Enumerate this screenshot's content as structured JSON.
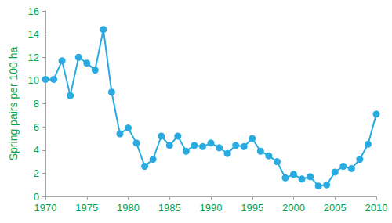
{
  "chart_data": {
    "type": "line",
    "ylabel": "Spring pairs per 100 ha",
    "x": [
      1970,
      1971,
      1972,
      1973,
      1974,
      1975,
      1976,
      1977,
      1978,
      1979,
      1980,
      1981,
      1982,
      1983,
      1984,
      1985,
      1986,
      1987,
      1988,
      1989,
      1990,
      1991,
      1992,
      1993,
      1994,
      1995,
      1996,
      1997,
      1998,
      1999,
      2000,
      2001,
      2002,
      2003,
      2004,
      2005,
      2006,
      2007,
      2008,
      2009,
      2010
    ],
    "values": [
      10.1,
      10.1,
      11.7,
      8.7,
      12.0,
      11.5,
      10.9,
      14.4,
      9.0,
      5.4,
      5.9,
      4.6,
      2.6,
      3.2,
      5.2,
      4.4,
      5.2,
      3.9,
      4.4,
      4.3,
      4.6,
      4.2,
      3.7,
      4.4,
      4.3,
      5.0,
      3.9,
      3.5,
      3.0,
      1.6,
      1.9,
      1.5,
      1.7,
      0.9,
      1.0,
      2.1,
      2.6,
      2.4,
      3.2,
      4.5,
      7.1
    ],
    "color": "#29abe2",
    "marker": "circle",
    "xlim": [
      1970,
      2010
    ],
    "xticks": [
      1970,
      1975,
      1980,
      1985,
      1990,
      1995,
      2000,
      2005,
      2010
    ],
    "ylim": [
      0,
      16
    ],
    "yticks": [
      0,
      2,
      4,
      6,
      8,
      10,
      12,
      14,
      16
    ],
    "grid": false
  }
}
